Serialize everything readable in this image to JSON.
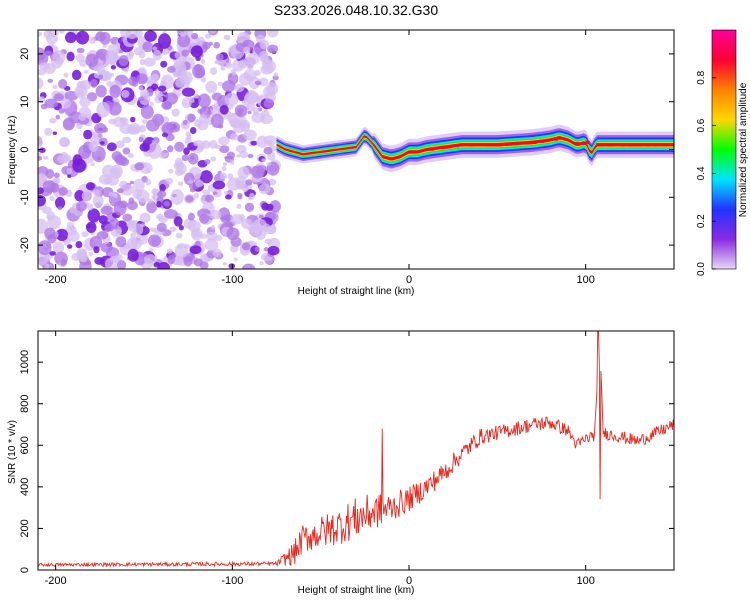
{
  "title": "S233.2026.048.10.32.G30",
  "chart_data": [
    {
      "type": "heatmap",
      "panel": "top",
      "xlabel": "Height of straight line (km)",
      "ylabel": "Frequency (Hz)",
      "xlim": [
        -210,
        150
      ],
      "ylim": [
        -25,
        25
      ],
      "xticks": [
        -200,
        -100,
        0,
        100
      ],
      "xtick_labels": [
        "-200",
        "-100",
        "0",
        "100"
      ],
      "yticks": [
        -20,
        -10,
        0,
        10,
        20
      ],
      "ytick_labels": [
        "-20",
        "-10",
        "0",
        "10",
        "20"
      ],
      "noise_region_x": [
        -210,
        -75
      ],
      "ridge": {
        "x": [
          -75,
          -70,
          -60,
          -50,
          -40,
          -30,
          -25,
          -20,
          -15,
          -10,
          -5,
          0,
          5,
          10,
          20,
          30,
          50,
          70,
          80,
          85,
          90,
          95,
          100,
          103,
          106,
          110,
          130,
          150
        ],
        "y": [
          1,
          0,
          -1,
          -0.5,
          0,
          0.5,
          3,
          1,
          -1.5,
          -2,
          -1.5,
          -0.5,
          -0.5,
          0,
          0.5,
          1,
          1,
          1.5,
          2,
          2.5,
          2,
          1,
          1.5,
          -1,
          1,
          1,
          1,
          1
        ]
      },
      "colorbar": {
        "label": "Normalized spectral amplitude",
        "range": [
          0,
          1
        ],
        "ticks": [
          0.0,
          0.2,
          0.4,
          0.6,
          0.8
        ],
        "tick_labels": [
          "0.0",
          "0.2",
          "0.4",
          "0.6",
          "0.8"
        ],
        "colors": [
          "#e8d6f5",
          "#8a2be2",
          "#2233ff",
          "#00e5ff",
          "#00ff00",
          "#ffd700",
          "#ff8000",
          "#ff0033",
          "#ff0099"
        ]
      }
    },
    {
      "type": "line",
      "panel": "bottom",
      "xlabel": "Height of straight line (km)",
      "ylabel": "SNR (10 * v/v)",
      "xlim": [
        -210,
        150
      ],
      "ylim": [
        0,
        1150
      ],
      "xticks": [
        -200,
        -100,
        0,
        100
      ],
      "xtick_labels": [
        "-200",
        "-100",
        "0",
        "100"
      ],
      "yticks": [
        0,
        200,
        400,
        600,
        800,
        1000
      ],
      "ytick_labels": [
        "0",
        "200",
        "400",
        "600",
        "800",
        "1000"
      ],
      "series": [
        {
          "name": "SNR",
          "color": "#e8281e",
          "x": [
            -210,
            -75,
            -65,
            -60,
            -50,
            -40,
            -30,
            -20,
            -10,
            0,
            10,
            20,
            30,
            40,
            50,
            60,
            70,
            80,
            90,
            95,
            100,
            105,
            108,
            110,
            120,
            130,
            140,
            150
          ],
          "y": [
            25,
            30,
            80,
            150,
            180,
            210,
            250,
            280,
            300,
            340,
            400,
            470,
            560,
            640,
            660,
            680,
            700,
            710,
            670,
            600,
            630,
            650,
            1050,
            660,
            640,
            620,
            660,
            700
          ],
          "noise": [
            8,
            10,
            60,
            70,
            80,
            90,
            100,
            90,
            70,
            60,
            55,
            50,
            45,
            40,
            35,
            35,
            35,
            35,
            30,
            30,
            30,
            30,
            30,
            30,
            30,
            30,
            30,
            30
          ],
          "spikes": [
            {
              "x": -15,
              "y": 680
            },
            {
              "x": 107,
              "y": 1150
            },
            {
              "x": 108,
              "y": 340
            }
          ]
        }
      ]
    }
  ]
}
